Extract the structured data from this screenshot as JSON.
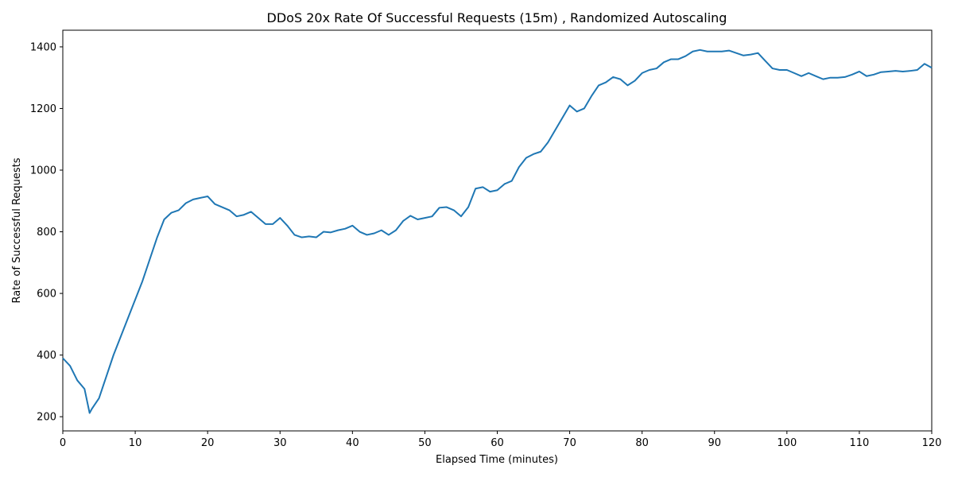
{
  "chart_data": {
    "type": "line",
    "title": "DDoS 20x Rate Of Successful Requests (15m) , Randomized Autoscaling",
    "x_label": "Elapsed Time (minutes)",
    "y_label": "Rate of Successful Requests",
    "color": "#1f77b4",
    "grid": false,
    "x": [
      0,
      1,
      2,
      3,
      3.7,
      4,
      5,
      6,
      7,
      8,
      9,
      10,
      11,
      12,
      13,
      14,
      15,
      16,
      17,
      18,
      19,
      20,
      21,
      22,
      23,
      24,
      25,
      26,
      27,
      28,
      29,
      30,
      31,
      32,
      33,
      34,
      35,
      36,
      37,
      38,
      39,
      40,
      41,
      42,
      43,
      44,
      45,
      46,
      47,
      48,
      49,
      50,
      51,
      52,
      53,
      54,
      55,
      56,
      57,
      58,
      59,
      60,
      61,
      62,
      63,
      64,
      65,
      66,
      67,
      68,
      69,
      70,
      71,
      72,
      73,
      74,
      75,
      76,
      77,
      78,
      79,
      80,
      81,
      82,
      83,
      84,
      85,
      86,
      87,
      88,
      89,
      90,
      91,
      92,
      93,
      94,
      95,
      96,
      97,
      98,
      99,
      100,
      101,
      102,
      103,
      104,
      105,
      106,
      107,
      108,
      109,
      110,
      111,
      112,
      113,
      114,
      115,
      116,
      117,
      118,
      119,
      120
    ],
    "values": [
      390,
      365,
      318,
      290,
      212,
      225,
      260,
      330,
      400,
      460,
      520,
      580,
      640,
      710,
      780,
      840,
      862,
      870,
      893,
      905,
      910,
      915,
      890,
      880,
      870,
      850,
      855,
      865,
      845,
      825,
      825,
      845,
      820,
      790,
      782,
      785,
      782,
      800,
      798,
      805,
      810,
      820,
      800,
      790,
      795,
      805,
      790,
      805,
      835,
      852,
      840,
      845,
      850,
      878,
      880,
      870,
      850,
      880,
      940,
      945,
      930,
      935,
      955,
      965,
      1010,
      1040,
      1052,
      1060,
      1090,
      1130,
      1170,
      1210,
      1190,
      1200,
      1240,
      1275,
      1285,
      1302,
      1295,
      1275,
      1290,
      1315,
      1325,
      1330,
      1350,
      1360,
      1360,
      1370,
      1385,
      1390,
      1385,
      1385,
      1385,
      1388,
      1380,
      1372,
      1375,
      1380,
      1355,
      1330,
      1325,
      1325,
      1315,
      1305,
      1315,
      1305,
      1295,
      1300,
      1300,
      1302,
      1310,
      1320,
      1305,
      1310,
      1318,
      1320,
      1322,
      1320,
      1322,
      1325,
      1345,
      1332
    ],
    "xlim": [
      0,
      120
    ],
    "ylim": [
      154,
      1454
    ],
    "xticks": [
      0,
      10,
      20,
      30,
      40,
      50,
      60,
      70,
      80,
      90,
      100,
      110,
      120
    ],
    "yticks": [
      200,
      400,
      600,
      800,
      1000,
      1200,
      1400
    ]
  }
}
